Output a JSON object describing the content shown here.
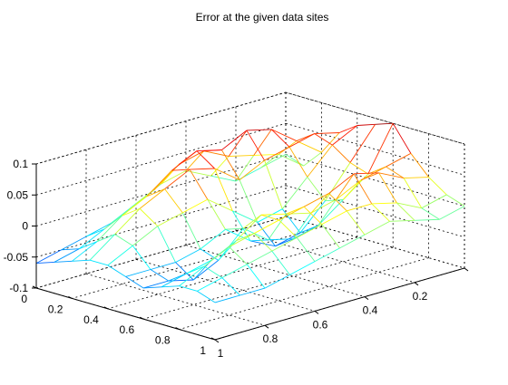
{
  "chart_data": {
    "type": "surface",
    "style": "mesh",
    "title": "Error at the given data sites",
    "xlabel": "",
    "ylabel": "",
    "zlabel": "",
    "xlim": [
      0,
      1
    ],
    "ylim": [
      0,
      1
    ],
    "zlim": [
      -0.1,
      0.1
    ],
    "grid": true,
    "colormap": "jet",
    "x_ticks": [
      "0",
      "0.2",
      "0.4",
      "0.6",
      "0.8",
      "1"
    ],
    "y_ticks": [
      "0",
      "0.2",
      "0.4",
      "0.6",
      "0.8",
      "1"
    ],
    "z_ticks": [
      "-0.1",
      "-0.05",
      "0",
      "0.05",
      "0.1"
    ],
    "y_tick_visible": [
      "",
      "0.2",
      "0.4",
      "0.6",
      "0.8",
      "1"
    ],
    "x": [
      0,
      0.1,
      0.2,
      0.3,
      0.4,
      0.5,
      0.6,
      0.7,
      0.8,
      0.9,
      1.0
    ],
    "y": [
      0,
      0.1,
      0.2,
      0.3,
      0.4,
      0.5,
      0.6,
      0.7,
      0.8,
      0.9,
      1.0
    ],
    "z": [
      [
        0.0,
        -0.01,
        0.02,
        0.06,
        0.08,
        0.09,
        0.1,
        0.06,
        0.03,
        0.01,
        0.0
      ],
      [
        -0.01,
        0.02,
        0.05,
        0.07,
        0.06,
        0.04,
        0.03,
        0.05,
        0.04,
        0.0,
        -0.01
      ],
      [
        -0.02,
        0.03,
        0.08,
        0.06,
        0.02,
        -0.01,
        0.0,
        0.04,
        0.06,
        0.02,
        0.0
      ],
      [
        0.0,
        0.04,
        0.09,
        0.05,
        -0.02,
        -0.05,
        -0.03,
        0.02,
        0.07,
        0.03,
        0.01
      ],
      [
        0.02,
        0.06,
        0.07,
        0.03,
        -0.03,
        -0.06,
        -0.04,
        0.01,
        0.05,
        0.03,
        0.0
      ],
      [
        0.01,
        0.05,
        0.08,
        0.06,
        0.0,
        -0.04,
        -0.03,
        0.02,
        0.04,
        0.02,
        -0.01
      ],
      [
        -0.01,
        0.02,
        0.06,
        0.07,
        0.03,
        -0.01,
        0.0,
        0.03,
        0.03,
        0.01,
        -0.02
      ],
      [
        -0.03,
        0.0,
        0.03,
        0.05,
        0.02,
        -0.03,
        -0.04,
        0.0,
        0.02,
        0.0,
        -0.03
      ],
      [
        -0.04,
        -0.02,
        0.01,
        0.03,
        0.01,
        -0.04,
        -0.06,
        -0.02,
        0.01,
        -0.01,
        -0.04
      ],
      [
        -0.05,
        -0.04,
        -0.02,
        0.0,
        -0.01,
        -0.04,
        -0.05,
        -0.03,
        -0.01,
        -0.02,
        -0.04
      ],
      [
        -0.06,
        -0.05,
        -0.04,
        -0.03,
        -0.03,
        -0.04,
        -0.05,
        -0.04,
        -0.03,
        -0.03,
        -0.04
      ]
    ]
  }
}
